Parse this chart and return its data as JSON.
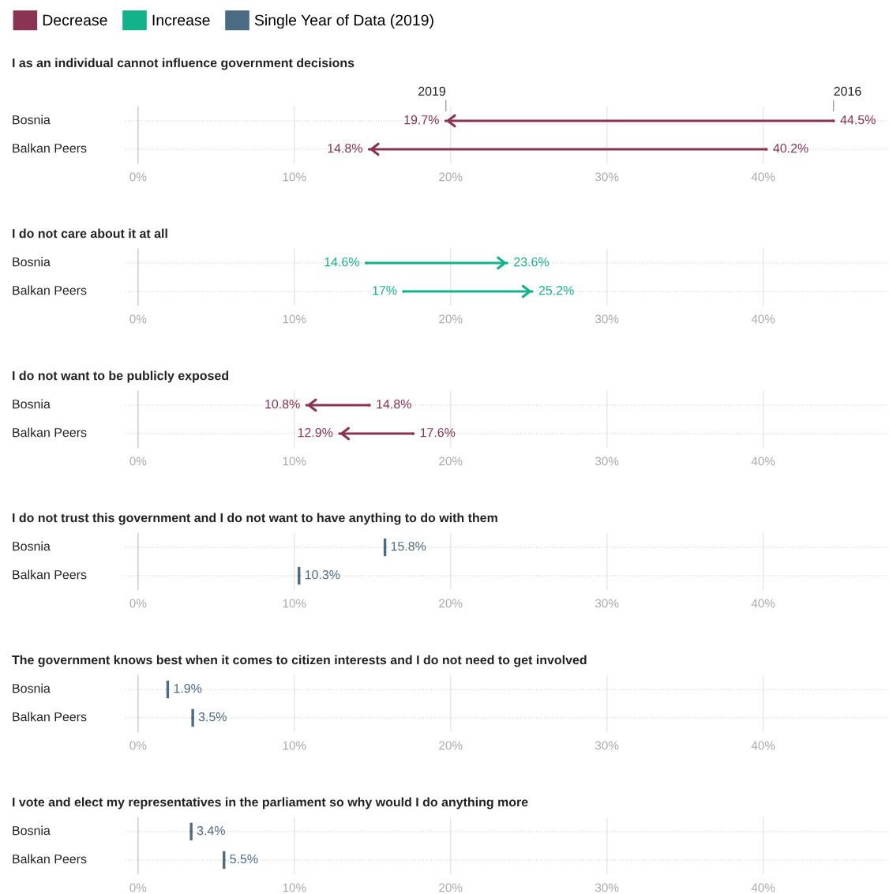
{
  "chart_data": [
    {
      "type": "other",
      "series": [
        {
          "name": "Decrease",
          "color": "#8a3352"
        },
        {
          "name": "Increase",
          "color": "#12b38b"
        },
        {
          "name": "Single Year of Data (2019)",
          "color": "#4b6a84"
        }
      ],
      "legend": "top left"
    },
    {
      "type": "scatter",
      "orientation": "horizontal",
      "title": "I as an individual cannot influence government decisions",
      "categories": [
        "Bosnia",
        "Balkan Peers"
      ],
      "series": [
        {
          "values": [
            44.5,
            40.2
          ],
          "value_labels": [
            "44.5%",
            "40.2%"
          ],
          "colors": [
            "#8a3352",
            "#8a3352"
          ]
        },
        {
          "values": [
            19.7,
            14.8
          ],
          "value_labels": [
            "19.7%",
            "14.8%"
          ],
          "colors": [
            "#8a3352",
            "#8a3352"
          ]
        }
      ],
      "annotations": [
        {
          "text": "2019",
          "x": 19.7,
          "y": "Bosnia"
        },
        {
          "text": "2016",
          "x": 44.5,
          "y": "Bosnia"
        }
      ],
      "xlim": [
        -0.8,
        48
      ],
      "xticks": [
        {
          "value": 0,
          "label": "0%"
        },
        {
          "value": 10,
          "label": "10%"
        },
        {
          "value": 20,
          "label": "20%"
        },
        {
          "value": 30,
          "label": "30%"
        },
        {
          "value": 40,
          "label": "40%"
        }
      ],
      "grid": true
    },
    {
      "type": "scatter",
      "orientation": "horizontal",
      "title": "I do not care about it at all",
      "categories": [
        "Bosnia",
        "Balkan Peers"
      ],
      "series": [
        {
          "values": [
            14.6,
            17
          ],
          "value_labels": [
            "14.6%",
            "17%"
          ],
          "colors": [
            "#12b38b",
            "#12b38b"
          ]
        },
        {
          "values": [
            23.6,
            25.2
          ],
          "value_labels": [
            "23.6%",
            "25.2%"
          ],
          "colors": [
            "#12b38b",
            "#12b38b"
          ]
        }
      ],
      "xlim": [
        -0.8,
        48
      ],
      "xticks": [
        {
          "value": 0,
          "label": "0%"
        },
        {
          "value": 10,
          "label": "10%"
        },
        {
          "value": 20,
          "label": "20%"
        },
        {
          "value": 30,
          "label": "30%"
        },
        {
          "value": 40,
          "label": "40%"
        }
      ],
      "grid": true
    },
    {
      "type": "scatter",
      "orientation": "horizontal",
      "title": "I do not want to be publicly exposed",
      "categories": [
        "Bosnia",
        "Balkan Peers"
      ],
      "series": [
        {
          "values": [
            14.8,
            17.6
          ],
          "value_labels": [
            "14.8%",
            "17.6%"
          ],
          "colors": [
            "#8a3352",
            "#8a3352"
          ]
        },
        {
          "values": [
            10.8,
            12.9
          ],
          "value_labels": [
            "10.8%",
            "12.9%"
          ],
          "colors": [
            "#8a3352",
            "#8a3352"
          ]
        }
      ],
      "xlim": [
        -0.8,
        48
      ],
      "xticks": [
        {
          "value": 0,
          "label": "0%"
        },
        {
          "value": 10,
          "label": "10%"
        },
        {
          "value": 20,
          "label": "20%"
        },
        {
          "value": 30,
          "label": "30%"
        },
        {
          "value": 40,
          "label": "40%"
        }
      ],
      "grid": true
    },
    {
      "type": "scatter",
      "orientation": "horizontal",
      "title": "I do not trust this government and I do not want to have anything to do with them",
      "categories": [
        "Bosnia",
        "Balkan Peers"
      ],
      "series": [
        {
          "values": [
            15.8,
            10.3
          ],
          "value_labels": [
            "15.8%",
            "10.3%"
          ],
          "colors": [
            "#4b6a84",
            "#4b6a84"
          ]
        }
      ],
      "xlim": [
        -0.8,
        48
      ],
      "xticks": [
        {
          "value": 0,
          "label": "0%"
        },
        {
          "value": 10,
          "label": "10%"
        },
        {
          "value": 20,
          "label": "20%"
        },
        {
          "value": 30,
          "label": "30%"
        },
        {
          "value": 40,
          "label": "40%"
        }
      ],
      "grid": true
    },
    {
      "type": "scatter",
      "orientation": "horizontal",
      "title": "The government knows best when it comes to citizen interests and I do not need to get involved",
      "categories": [
        "Bosnia",
        "Balkan Peers"
      ],
      "series": [
        {
          "values": [
            1.9,
            3.5
          ],
          "value_labels": [
            "1.9%",
            "3.5%"
          ],
          "colors": [
            "#4b6a84",
            "#4b6a84"
          ]
        }
      ],
      "xlim": [
        -0.8,
        48
      ],
      "xticks": [
        {
          "value": 0,
          "label": "0%"
        },
        {
          "value": 10,
          "label": "10%"
        },
        {
          "value": 20,
          "label": "20%"
        },
        {
          "value": 30,
          "label": "30%"
        },
        {
          "value": 40,
          "label": "40%"
        }
      ],
      "grid": true
    },
    {
      "type": "scatter",
      "orientation": "horizontal",
      "title": "I vote and elect my representatives in the parliament so why would I do anything more",
      "categories": [
        "Bosnia",
        "Balkan Peers"
      ],
      "series": [
        {
          "values": [
            3.4,
            5.5
          ],
          "value_labels": [
            "3.4%",
            "5.5%"
          ],
          "colors": [
            "#4b6a84",
            "#4b6a84"
          ]
        }
      ],
      "xlim": [
        -0.8,
        48
      ],
      "xticks": [
        {
          "value": 0,
          "label": "0%"
        },
        {
          "value": 10,
          "label": "10%"
        },
        {
          "value": 20,
          "label": "20%"
        },
        {
          "value": 30,
          "label": "30%"
        },
        {
          "value": 40,
          "label": "40%"
        }
      ],
      "grid": true
    }
  ]
}
